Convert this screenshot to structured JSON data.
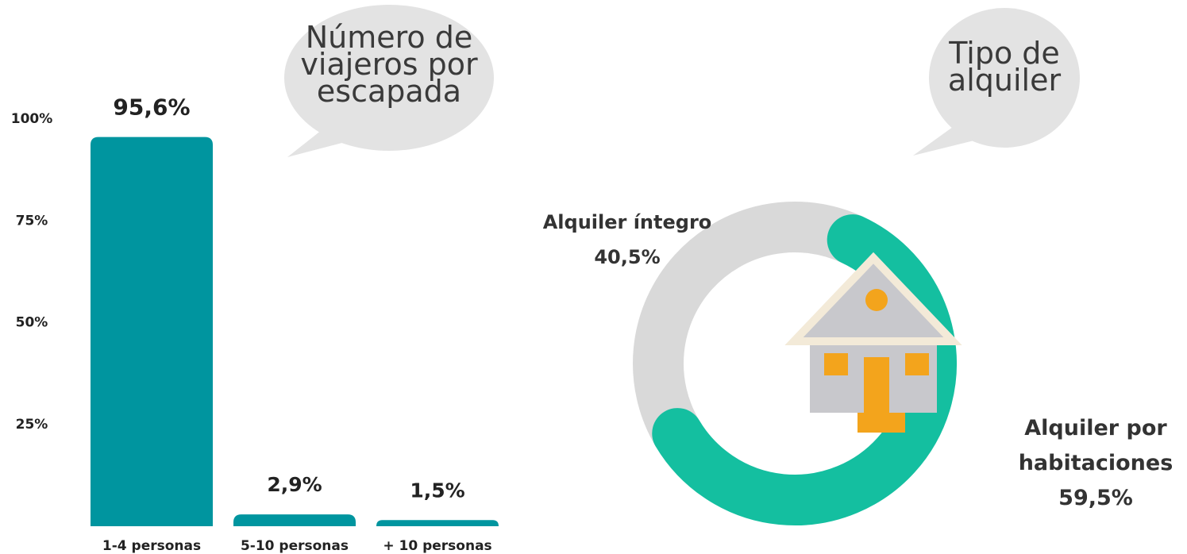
{
  "chart_data": [
    {
      "type": "bar",
      "title": "Número de viajeros por escapada",
      "categories": [
        "1-4 personas",
        "5-10 personas",
        "+ 10 personas"
      ],
      "values": [
        95.6,
        2.9,
        1.5
      ],
      "value_labels": [
        "95,6%",
        "2,9%",
        "1,5%"
      ],
      "color": "#00959f",
      "ylim": [
        0,
        100
      ],
      "yticks": [
        {
          "value": 25,
          "label": "25%"
        },
        {
          "value": 50,
          "label": "50%"
        },
        {
          "value": 75,
          "label": "75%"
        },
        {
          "value": 100,
          "label": "100%"
        }
      ]
    },
    {
      "type": "donut",
      "title": "Tipo de alquiler",
      "categories": [
        "Alquiler íntegro",
        "Alquiler por habitaciones"
      ],
      "values": [
        40.5,
        59.5
      ],
      "value_labels": [
        "40,5%",
        "59,5%"
      ],
      "colors": [
        "#d9d9d9",
        "#14bfa0"
      ]
    }
  ]
}
